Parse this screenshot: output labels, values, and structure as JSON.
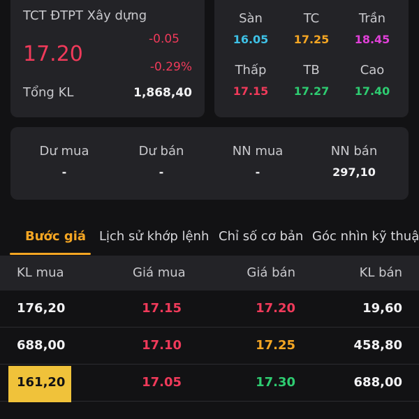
{
  "quote": {
    "company": "TCT ĐTPT Xây dựng",
    "price": "17.20",
    "change": "-0.05",
    "change_pct": "-0.29%",
    "volume_label": "Tổng KL",
    "volume": "1,868,40"
  },
  "prices": {
    "items": [
      {
        "label": "Sàn",
        "value": "16.05",
        "color": "#3ec1e6"
      },
      {
        "label": "TC",
        "value": "17.25",
        "color": "#f5a623"
      },
      {
        "label": "Trần",
        "value": "18.45",
        "color": "#e040d8"
      },
      {
        "label": "Thấp",
        "value": "17.15",
        "color": "#f03a5a"
      },
      {
        "label": "TB",
        "value": "17.27",
        "color": "#2ecc71"
      },
      {
        "label": "Cao",
        "value": "17.40",
        "color": "#2ecc71"
      }
    ]
  },
  "extra": {
    "items": [
      {
        "label": "Dư mua",
        "value": "-"
      },
      {
        "label": "Dư bán",
        "value": "-"
      },
      {
        "label": "NN mua",
        "value": "-"
      },
      {
        "label": "NN bán",
        "value": "297,10"
      }
    ]
  },
  "tabs": [
    {
      "label": "Bước giá"
    },
    {
      "label": "Lịch sử khớp lệnh"
    },
    {
      "label": "Chỉ số cơ bản"
    },
    {
      "label": "Góc nhìn kỹ thuậ"
    }
  ],
  "table": {
    "headers": [
      "KL mua",
      "Giá mua",
      "Giá bán",
      "KL bán"
    ],
    "rows": [
      {
        "kl_mua": "176,20",
        "gia_mua": "17.15",
        "gia_ban": "17.20",
        "kl_ban": "19,60"
      },
      {
        "kl_mua": "688,00",
        "gia_mua": "17.10",
        "gia_ban": "17.25",
        "kl_ban": "458,80"
      },
      {
        "kl_mua": "161,20",
        "gia_mua": "17.05",
        "gia_ban": "17.30",
        "kl_ban": "688,00"
      }
    ]
  },
  "colors": {
    "down": "#f03a5a",
    "ref": "#f5a623",
    "up": "#2ecc71",
    "accent": "#f5a623",
    "highlight": "#f0c23a"
  }
}
